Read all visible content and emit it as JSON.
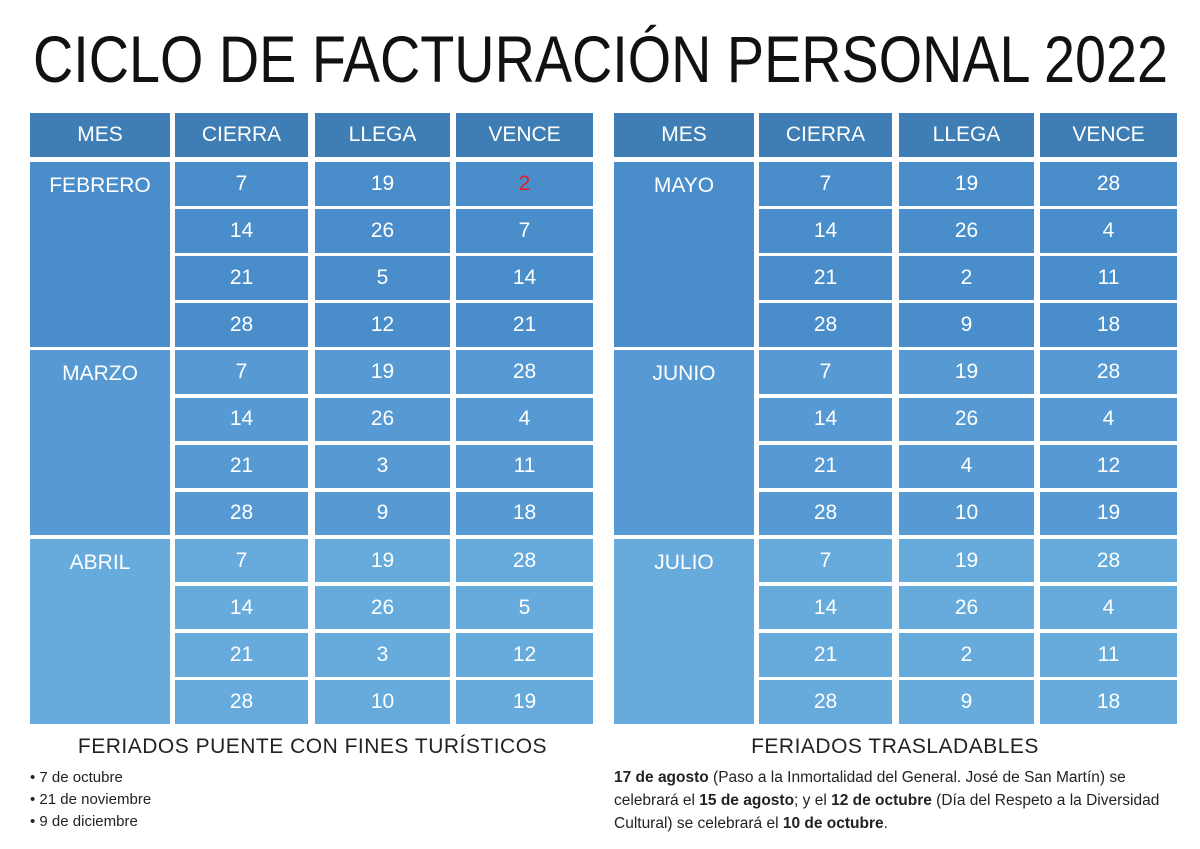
{
  "title": "CICLO DE FACTURACIÓN PERSONAL 2022",
  "tables": [
    {
      "header": [
        "MES",
        "CIERRA",
        "LLEGA",
        "VENCE"
      ],
      "months": [
        {
          "name": "FEBRERO",
          "rows": [
            [
              7,
              19,
              2
            ],
            [
              14,
              26,
              7
            ],
            [
              21,
              5,
              14
            ],
            [
              28,
              12,
              21
            ]
          ]
        },
        {
          "name": "MARZO",
          "rows": [
            [
              7,
              19,
              28
            ],
            [
              14,
              26,
              4
            ],
            [
              21,
              3,
              11
            ],
            [
              28,
              9,
              18
            ]
          ]
        },
        {
          "name": "ABRIL",
          "rows": [
            [
              7,
              19,
              28
            ],
            [
              14,
              26,
              5
            ],
            [
              21,
              3,
              12
            ],
            [
              28,
              10,
              19
            ]
          ]
        }
      ]
    },
    {
      "header": [
        "MES",
        "CIERRA",
        "LLEGA",
        "VENCE"
      ],
      "months": [
        {
          "name": "MAYO",
          "rows": [
            [
              7,
              19,
              28
            ],
            [
              14,
              26,
              4
            ],
            [
              21,
              2,
              11
            ],
            [
              28,
              9,
              18
            ]
          ]
        },
        {
          "name": "JUNIO",
          "rows": [
            [
              7,
              19,
              28
            ],
            [
              14,
              26,
              4
            ],
            [
              21,
              4,
              12
            ],
            [
              28,
              10,
              19
            ]
          ]
        },
        {
          "name": "JULIO",
          "rows": [
            [
              7,
              19,
              28
            ],
            [
              14,
              26,
              4
            ],
            [
              21,
              2,
              11
            ],
            [
              28,
              9,
              18
            ]
          ]
        }
      ]
    }
  ],
  "notes": {
    "left": {
      "title": "FERIADOS PUENTE CON FINES TURÍSTICOS",
      "items": [
        "7 de octubre",
        "21 de noviembre",
        "9 de diciembre"
      ]
    },
    "right": {
      "title": "FERIADOS TRASLADABLES",
      "parts": [
        {
          "text": "17 de agosto",
          "bold": true
        },
        {
          "text": " (Paso a la Inmortalidad del General. José de San Martín) se celebrará el ",
          "bold": false
        },
        {
          "text": "15 de agosto",
          "bold": true
        },
        {
          "text": "; y el ",
          "bold": false
        },
        {
          "text": "12 de octubre",
          "bold": true
        },
        {
          "text": " (Día del Respeto a la Diversidad Cultural) se celebrará el ",
          "bold": false
        },
        {
          "text": "10 de octubre",
          "bold": true
        },
        {
          "text": ".",
          "bold": false
        }
      ]
    }
  }
}
